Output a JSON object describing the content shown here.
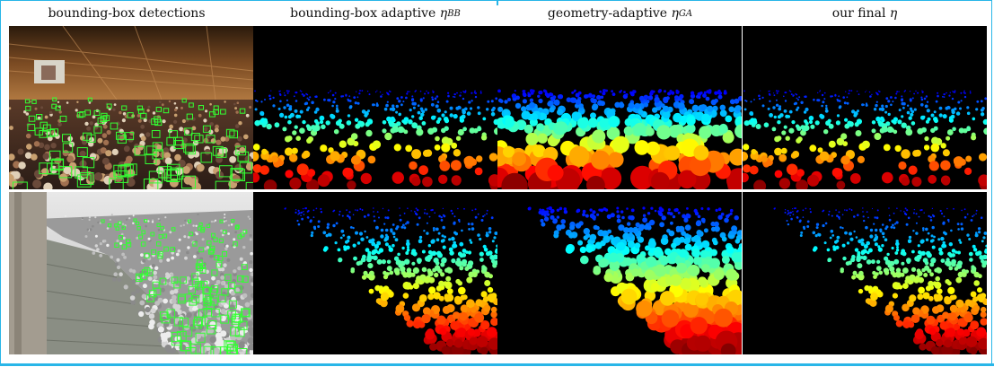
{
  "columns": [
    {
      "id": "bb-detections",
      "text": "bounding-box detections"
    },
    {
      "id": "bb-adaptive",
      "text": "bounding-box adaptive ",
      "symbol": "η",
      "subscript": "BB"
    },
    {
      "id": "geo-adaptive",
      "text": "geometry-adaptive ",
      "symbol": "η",
      "subscript": "GA"
    },
    {
      "id": "final",
      "text": "our final ",
      "symbol": "η"
    }
  ],
  "rows": [
    "hall-scene",
    "stadium-scene"
  ],
  "colors": {
    "frame": "#29b6e8",
    "detection_box": "#33ff33",
    "density_far": "#1a3cff",
    "density_near": "#8b0000"
  }
}
